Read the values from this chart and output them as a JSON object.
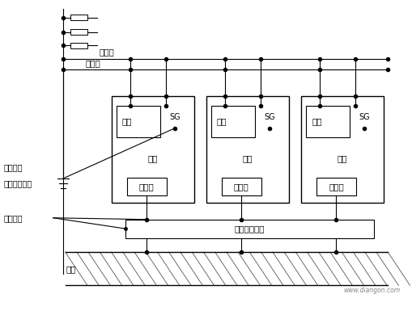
{
  "bg_color": "#ffffff",
  "fig_width": 5.1,
  "fig_height": 3.9,
  "dpi": 100,
  "labels": {
    "zhongxingxian": "中性线",
    "shebeidI": "设备地",
    "zhongxingdidI": "中性点地",
    "xinhaodI_ref": "信号地参考点",
    "jueyuandaoxian": "绝缘导线",
    "jueyuananquandI": "绝缘的安全地",
    "diwang": "地网",
    "jixiang": "机算",
    "xinhaodI": "信号地",
    "dianyuan": "电源",
    "sg": "SG",
    "watermark": "www.diangon.com"
  },
  "colors": {
    "line": "#000000",
    "text": "#000000",
    "watermark": "#888888",
    "hatch": "#555555"
  },
  "xlim": [
    0,
    10.2
  ],
  "ylim": [
    0,
    7.8
  ]
}
